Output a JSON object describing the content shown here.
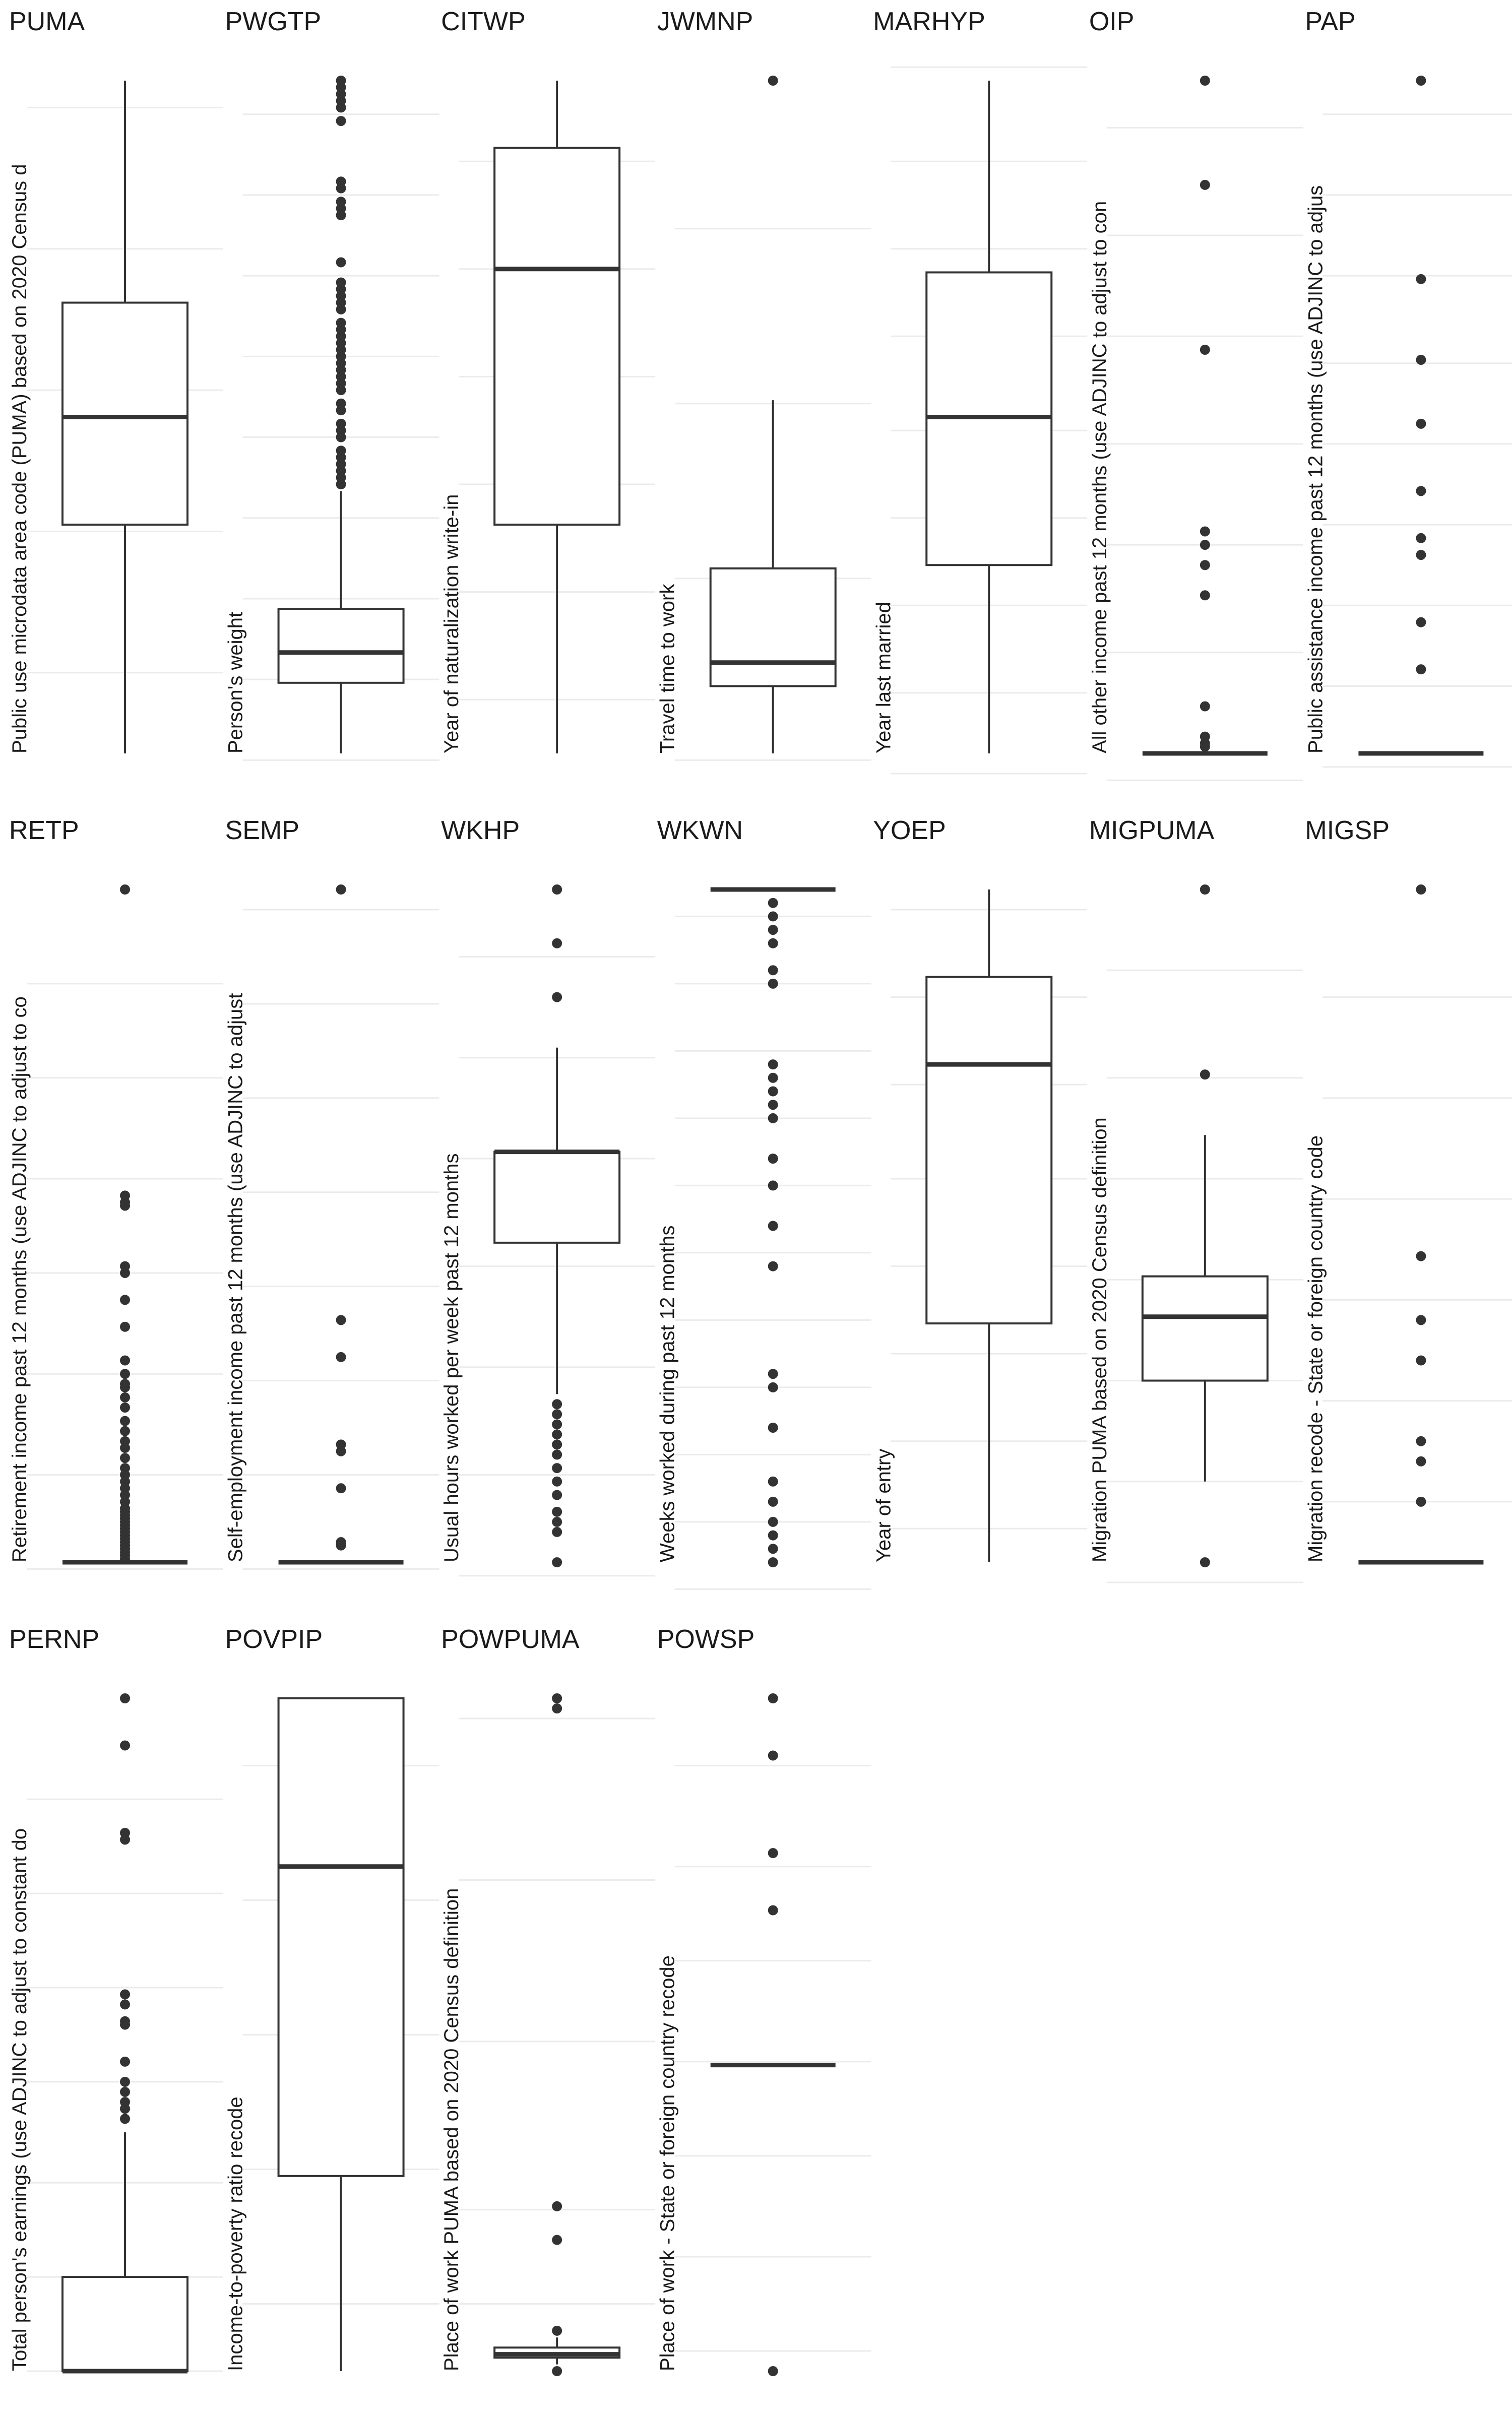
{
  "chart_data": {
    "type": "boxplot",
    "layout": {
      "columns": 7,
      "rows": 3
    },
    "grid": true,
    "panels": [
      {
        "title": "PUMA",
        "ylabel": "Public use microdata area code (PUMA) based on 2020 Census d",
        "ylim": [
          0,
          1
        ],
        "gridlines": [
          0.12,
          0.33,
          0.54,
          0.75,
          0.96
        ],
        "whisker_low": 0.0,
        "q1": 0.34,
        "median": 0.5,
        "q3": 0.67,
        "whisker_high": 1.0,
        "outliers": []
      },
      {
        "title": "PWGTP",
        "ylabel": "Person's weight",
        "ylim": [
          0,
          1
        ],
        "gridlines": [
          -0.01,
          0.11,
          0.23,
          0.35,
          0.47,
          0.59,
          0.71,
          0.83,
          0.95
        ],
        "whisker_low": 0.0,
        "q1": 0.105,
        "median": 0.15,
        "q3": 0.215,
        "whisker_high": 0.39,
        "outliers": [
          0.4,
          0.41,
          0.42,
          0.43,
          0.44,
          0.45,
          0.47,
          0.48,
          0.49,
          0.51,
          0.52,
          0.54,
          0.55,
          0.56,
          0.57,
          0.58,
          0.59,
          0.6,
          0.61,
          0.62,
          0.63,
          0.64,
          0.66,
          0.67,
          0.68,
          0.69,
          0.7,
          0.73,
          0.8,
          0.81,
          0.82,
          0.84,
          0.85,
          0.94,
          0.96,
          0.97,
          0.98,
          0.99,
          1.0
        ]
      },
      {
        "title": "CITWP",
        "ylabel": "Year of naturalization write-in",
        "ylim": [
          0,
          1
        ],
        "gridlines": [
          0.08,
          0.24,
          0.4,
          0.56,
          0.72,
          0.88
        ],
        "whisker_low": 0.0,
        "q1": 0.34,
        "median": 0.72,
        "q3": 0.9,
        "whisker_high": 1.0,
        "outliers": []
      },
      {
        "title": "JWMNP",
        "ylabel": "Travel time to work",
        "ylim": [
          0,
          1
        ],
        "gridlines": [
          -0.01,
          0.26,
          0.52,
          0.78
        ],
        "whisker_low": 0.0,
        "q1": 0.1,
        "median": 0.135,
        "q3": 0.275,
        "whisker_high": 0.525,
        "outliers": [
          1.0
        ]
      },
      {
        "title": "MARHYP",
        "ylabel": "Year last married",
        "ylim": [
          0,
          1
        ],
        "gridlines": [
          -0.03,
          0.09,
          0.22,
          0.35,
          0.48,
          0.62,
          0.75,
          0.88,
          1.02
        ],
        "whisker_low": 0.0,
        "q1": 0.28,
        "median": 0.5,
        "q3": 0.715,
        "whisker_high": 1.0,
        "outliers": []
      },
      {
        "title": "OIP",
        "ylabel": "All other income past 12 months (use ADJINC to adjust to con",
        "ylim": [
          0,
          1
        ],
        "gridlines": [
          -0.04,
          0.15,
          0.31,
          0.46,
          0.62,
          0.77,
          0.93
        ],
        "whisker_low": 0.0,
        "q1": 0.0,
        "median": 0.0,
        "q3": 0.0,
        "whisker_high": 0.0,
        "outliers": [
          0.01,
          0.015,
          0.025,
          0.07,
          0.235,
          0.28,
          0.31,
          0.33,
          0.6,
          0.845,
          1.0
        ]
      },
      {
        "title": "PAP",
        "ylabel": "Public assistance income past 12 months (use ADJINC to adjus",
        "ylim": [
          0,
          1
        ],
        "gridlines": [
          -0.02,
          0.1,
          0.22,
          0.34,
          0.46,
          0.58,
          0.71,
          0.83,
          0.95
        ],
        "whisker_low": 0.0,
        "q1": 0.0,
        "median": 0.0,
        "q3": 0.0,
        "whisker_high": 0.0,
        "outliers": [
          0.125,
          0.195,
          0.295,
          0.32,
          0.39,
          0.49,
          0.585,
          0.705,
          1.0
        ]
      },
      {
        "title": "RETP",
        "ylabel": "Retirement income past 12 months (use ADJINC to adjust to co",
        "ylim": [
          0,
          1
        ],
        "gridlines": [
          -0.01,
          0.13,
          0.28,
          0.43,
          0.57,
          0.72,
          0.86
        ],
        "whisker_low": 0.0,
        "q1": 0.0,
        "median": 0.0,
        "q3": 0.0,
        "whisker_high": 0.0,
        "outliers": [
          0.005,
          0.01,
          0.015,
          0.02,
          0.025,
          0.03,
          0.035,
          0.04,
          0.045,
          0.05,
          0.055,
          0.06,
          0.065,
          0.07,
          0.075,
          0.08,
          0.09,
          0.1,
          0.11,
          0.12,
          0.13,
          0.14,
          0.155,
          0.17,
          0.18,
          0.195,
          0.21,
          0.23,
          0.245,
          0.26,
          0.265,
          0.28,
          0.3,
          0.35,
          0.39,
          0.43,
          0.44,
          0.53,
          0.535,
          0.545,
          1.0
        ]
      },
      {
        "title": "SEMP",
        "ylabel": "Self-employment income past 12 months (use ADJINC to adjust",
        "ylim": [
          0,
          1
        ],
        "gridlines": [
          -0.01,
          0.13,
          0.27,
          0.41,
          0.55,
          0.69,
          0.83,
          0.97
        ],
        "whisker_low": 0.0,
        "q1": 0.0,
        "median": 0.0,
        "q3": 0.0,
        "whisker_high": 0.0,
        "outliers": [
          0.025,
          0.03,
          0.11,
          0.165,
          0.175,
          0.305,
          0.36,
          1.0
        ]
      },
      {
        "title": "WKHP",
        "ylabel": "Usual hours worked per week past 12 months",
        "ylim": [
          0,
          1
        ],
        "gridlines": [
          -0.02,
          0.13,
          0.29,
          0.44,
          0.6,
          0.75,
          0.9
        ],
        "whisker_low": 0.25,
        "q1": 0.475,
        "median": 0.61,
        "q3": 0.61,
        "whisker_high": 0.765,
        "outliers": [
          0.0,
          0.045,
          0.06,
          0.075,
          0.1,
          0.12,
          0.14,
          0.16,
          0.175,
          0.19,
          0.205,
          0.22,
          0.235,
          0.84,
          0.92,
          1.0
        ]
      },
      {
        "title": "WKWN",
        "ylabel": "Weeks worked during past 12 months",
        "ylim": [
          0,
          1
        ],
        "gridlines": [
          -0.04,
          0.06,
          0.16,
          0.26,
          0.36,
          0.46,
          0.56,
          0.66,
          0.76,
          0.86,
          0.96
        ],
        "whisker_low": 1.0,
        "q1": 1.0,
        "median": 1.0,
        "q3": 1.0,
        "whisker_high": 1.0,
        "outliers": [
          0.0,
          0.02,
          0.04,
          0.06,
          0.09,
          0.12,
          0.2,
          0.26,
          0.28,
          0.44,
          0.5,
          0.56,
          0.6,
          0.66,
          0.68,
          0.7,
          0.72,
          0.74,
          0.86,
          0.88,
          0.92,
          0.94,
          0.96,
          0.98
        ]
      },
      {
        "title": "YOEP",
        "ylabel": "Year of entry",
        "ylim": [
          0,
          1
        ],
        "gridlines": [
          0.05,
          0.18,
          0.31,
          0.44,
          0.57,
          0.71,
          0.84,
          0.97
        ],
        "whisker_low": 0.0,
        "q1": 0.355,
        "median": 0.74,
        "q3": 0.87,
        "whisker_high": 1.0,
        "outliers": []
      },
      {
        "title": "MIGPUMA",
        "ylabel": "Migration PUMA based on 2020 Census definition",
        "ylim": [
          0,
          1
        ],
        "gridlines": [
          -0.03,
          0.12,
          0.27,
          0.42,
          0.57,
          0.72,
          0.88
        ],
        "whisker_low": 0.12,
        "q1": 0.27,
        "median": 0.365,
        "q3": 0.425,
        "whisker_high": 0.635,
        "outliers": [
          0.0,
          0.725,
          1.0
        ]
      },
      {
        "title": "MIGSP",
        "ylabel": "Migration recode - State or foreign country code",
        "ylim": [
          0,
          1
        ],
        "gridlines": [
          0.09,
          0.24,
          0.39,
          0.54,
          0.69,
          0.84
        ],
        "whisker_low": 0.0,
        "q1": 0.0,
        "median": 0.0,
        "q3": 0.0,
        "whisker_high": 0.0,
        "outliers": [
          0.09,
          0.15,
          0.18,
          0.3,
          0.36,
          0.455,
          1.0
        ]
      },
      {
        "title": "PERNP",
        "ylabel": "Total person's earnings (use ADJINC to adjust to constant do",
        "ylim": [
          0,
          1
        ],
        "gridlines": [
          0.0,
          0.14,
          0.28,
          0.43,
          0.57,
          0.71,
          0.85
        ],
        "whisker_low": 0.0,
        "q1": 0.0,
        "median": 0.0,
        "q3": 0.14,
        "whisker_high": 0.355,
        "outliers": [
          0.375,
          0.39,
          0.4,
          0.415,
          0.43,
          0.46,
          0.515,
          0.52,
          0.545,
          0.56,
          0.79,
          0.8,
          0.93,
          1.0
        ]
      },
      {
        "title": "POVPIP",
        "ylabel": "Income-to-poverty ratio recode",
        "ylim": [
          0,
          1
        ],
        "gridlines": [
          0.1,
          0.3,
          0.5,
          0.7,
          0.9
        ],
        "whisker_low": 0.0,
        "q1": 0.29,
        "median": 0.75,
        "q3": 1.0,
        "whisker_high": 1.0,
        "outliers": []
      },
      {
        "title": "POWPUMA",
        "ylabel": "Place of work PUMA based on 2020 Census definition",
        "ylim": [
          0,
          1
        ],
        "gridlines": [
          0.1,
          0.24,
          0.49,
          0.73,
          0.97
        ],
        "whisker_low": 0.01,
        "q1": 0.02,
        "median": 0.025,
        "q3": 0.035,
        "whisker_high": 0.05,
        "outliers": [
          0.0,
          0.06,
          0.195,
          0.245,
          0.985,
          1.0
        ]
      },
      {
        "title": "POWSP",
        "ylabel": "Place of work - State or foreign country recode",
        "ylim": [
          0,
          1
        ],
        "gridlines": [
          0.03,
          0.17,
          0.32,
          0.46,
          0.61,
          0.75,
          0.9
        ],
        "whisker_low": 0.455,
        "q1": 0.455,
        "median": 0.455,
        "q3": 0.455,
        "whisker_high": 0.455,
        "outliers": [
          0.0,
          0.685,
          0.77,
          0.915,
          1.0
        ]
      }
    ]
  }
}
